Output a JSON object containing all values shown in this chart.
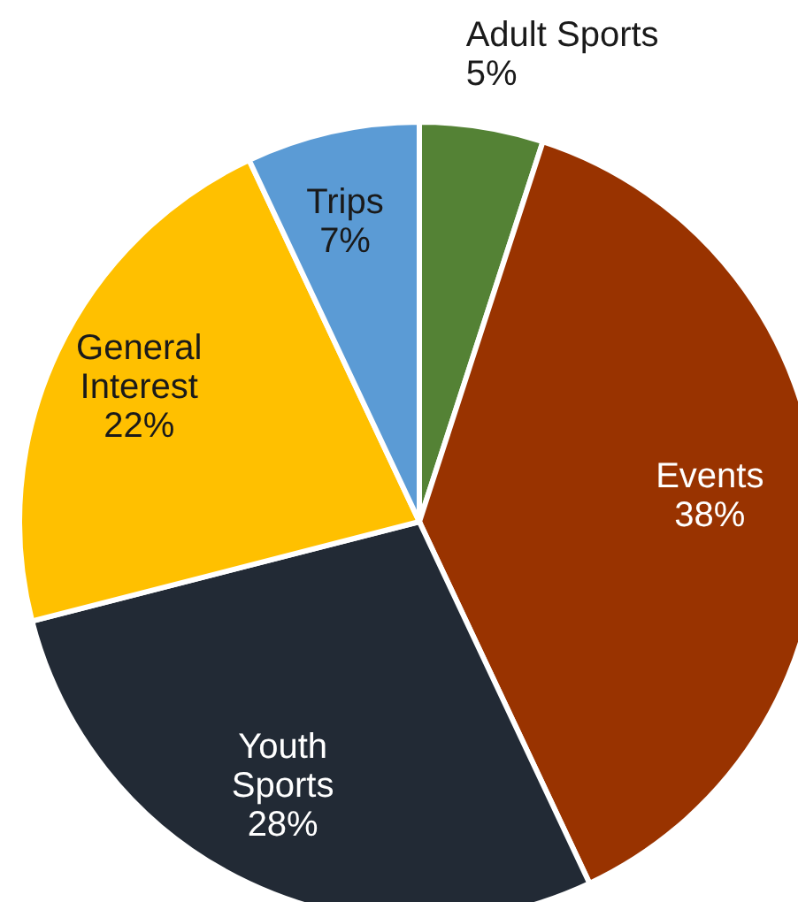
{
  "chart_data": {
    "type": "pie",
    "categories": [
      "Adult Sports",
      "Events",
      "Youth Sports",
      "General Interest",
      "Trips"
    ],
    "values": [
      5,
      38,
      28,
      22,
      7
    ],
    "value_labels": [
      "5%",
      "38%",
      "28%",
      "22%",
      "7%"
    ],
    "colors": [
      "#548235",
      "#993300",
      "#222a35",
      "#ffc000",
      "#5b9bd5"
    ],
    "legend": false
  }
}
